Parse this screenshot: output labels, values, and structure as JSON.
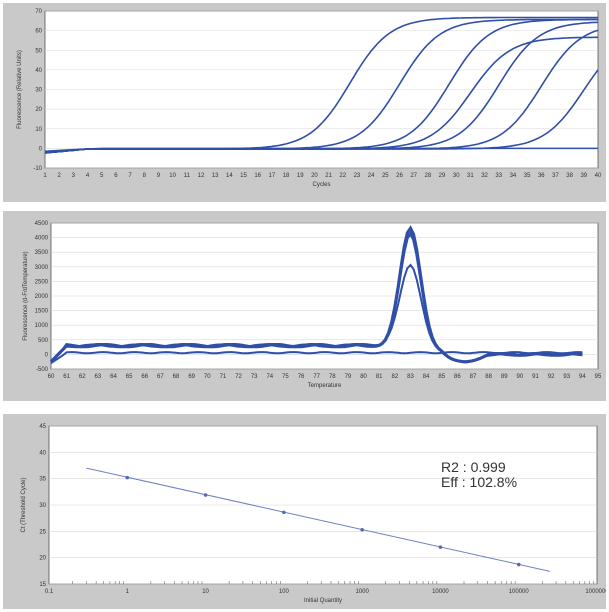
{
  "chart_data": [
    {
      "type": "line",
      "title": "",
      "ylabel": "Fluorescence (Relative Units)",
      "xlabel": "Cycles",
      "ylim": [
        -10,
        70
      ],
      "xlim": [
        1,
        40
      ],
      "grid": true,
      "yticks": [
        -10,
        0,
        10,
        20,
        30,
        40,
        50,
        60,
        70
      ],
      "xticks": [
        1,
        2,
        3,
        4,
        5,
        6,
        7,
        8,
        9,
        10,
        11,
        12,
        13,
        14,
        15,
        16,
        17,
        18,
        19,
        20,
        21,
        22,
        23,
        24,
        25,
        26,
        27,
        28,
        29,
        30,
        31,
        32,
        33,
        34,
        35,
        36,
        37,
        38,
        39,
        40
      ],
      "series": [
        {
          "ct": 22.5,
          "plateau": 67
        },
        {
          "ct": 26.0,
          "plateau": 66
        },
        {
          "ct": 29.5,
          "plateau": 66
        },
        {
          "ct": 33.0,
          "plateau": 65
        },
        {
          "ct": 36.0,
          "plateau": 64
        },
        {
          "ct": 39.0,
          "plateau": 60
        },
        {
          "ct": 31.0,
          "plateau": 57
        }
      ],
      "color": "#2f4fa8"
    },
    {
      "type": "line",
      "title": "",
      "ylabel": "Fluorescence (d-F/dTemperature)",
      "xlabel": "Temperature",
      "ylim": [
        -500,
        4500
      ],
      "xlim": [
        60,
        95
      ],
      "grid": true,
      "yticks": [
        -500,
        0,
        500,
        1000,
        1500,
        2000,
        2500,
        3000,
        3500,
        4000,
        4500
      ],
      "xticks": [
        60,
        61,
        62,
        63,
        64,
        65,
        66,
        67,
        68,
        69,
        70,
        71,
        72,
        73,
        74,
        75,
        76,
        77,
        78,
        79,
        80,
        81,
        82,
        83,
        84,
        85,
        86,
        87,
        88,
        89,
        90,
        91,
        92,
        93,
        94,
        95
      ],
      "series": [
        {
          "peak_temp": 83.0,
          "peak": 4300
        },
        {
          "peak_temp": 83.0,
          "peak": 4150
        },
        {
          "peak_temp": 83.0,
          "peak": 3100
        },
        {
          "peak_temp": null,
          "peak": 0
        }
      ],
      "color": "#2f4fa8"
    },
    {
      "type": "scatter",
      "title": "",
      "ylabel": "Ct (Threshold Cycle)",
      "xlabel": "Initial Quantity",
      "xscale": "log",
      "xlim": [
        0.1,
        1000000
      ],
      "ylim": [
        15,
        45
      ],
      "grid": true,
      "yticks": [
        15,
        20,
        25,
        30,
        35,
        40,
        45
      ],
      "xticks": [
        "0.1",
        "1",
        "10",
        "100",
        "1000",
        "10000",
        "100000",
        "1000000"
      ],
      "points": [
        {
          "x": 1,
          "y": 35.2
        },
        {
          "x": 10,
          "y": 31.9
        },
        {
          "x": 100,
          "y": 28.6
        },
        {
          "x": 1000,
          "y": 25.3
        },
        {
          "x": 10000,
          "y": 22.0
        },
        {
          "x": 100000,
          "y": 18.7
        }
      ],
      "fit_line": {
        "x_start": 0.3,
        "y_start": 37.0,
        "x_end": 250000,
        "y_end": 17.4
      },
      "annotations": [
        "R2 : 0.999",
        "Eff : 102.8%"
      ],
      "color": "#7080c0"
    }
  ]
}
